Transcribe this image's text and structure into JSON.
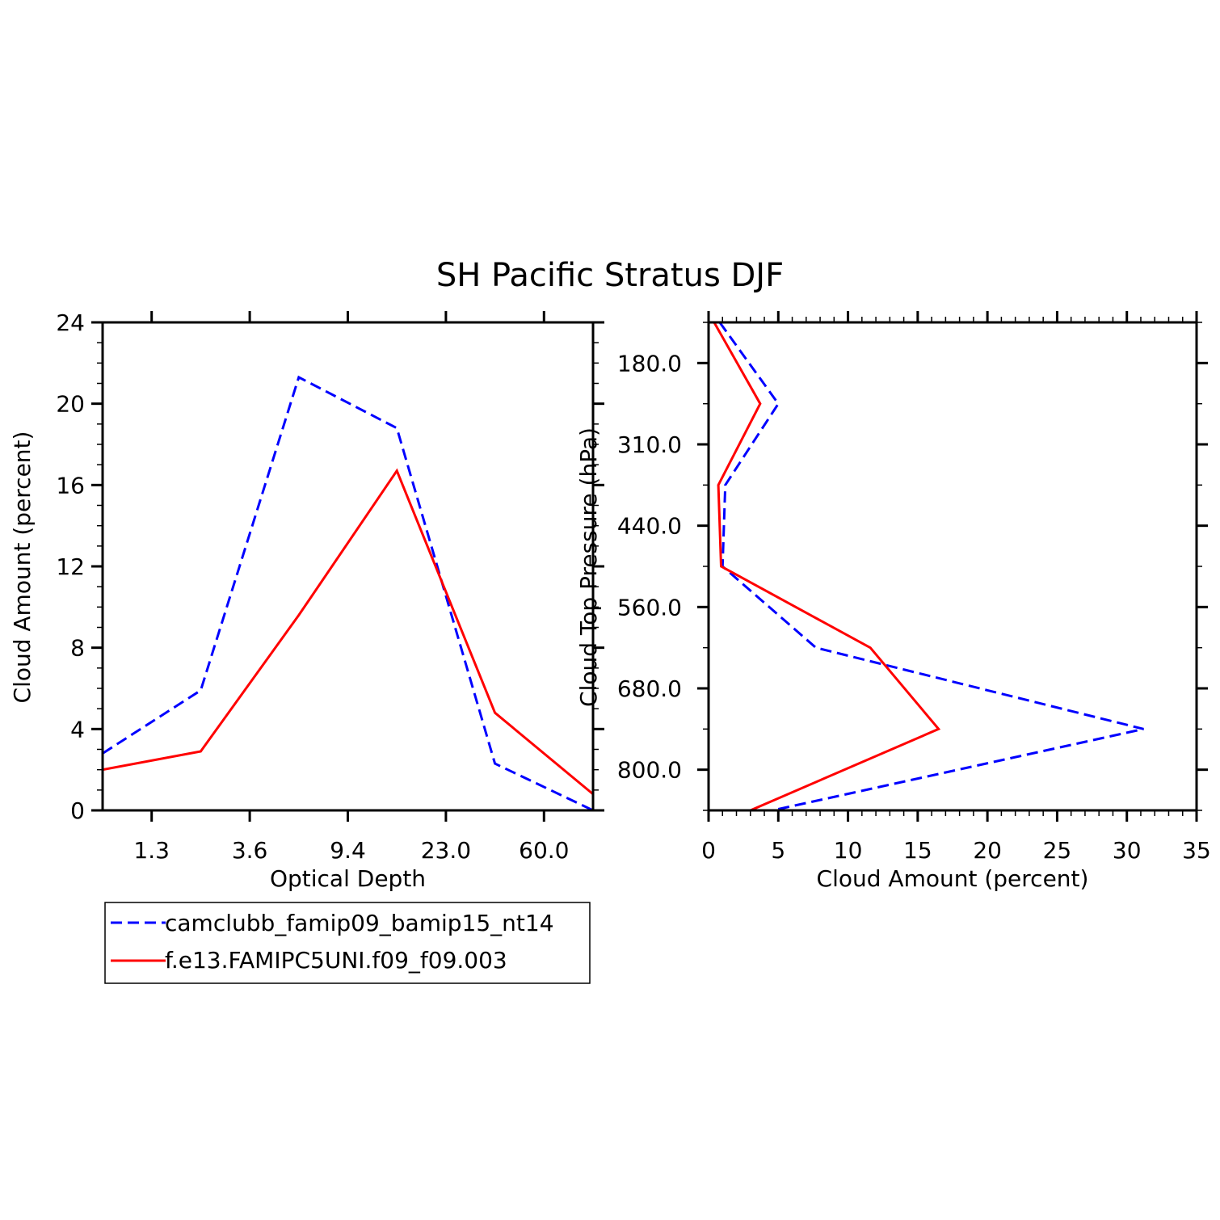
{
  "title": "SH Pacific Stratus DJF",
  "chart_data": [
    {
      "type": "line",
      "xlabel": "Optical Depth",
      "ylabel": "Cloud Amount (percent)",
      "categories": [
        "0.3",
        "1.3",
        "2.3",
        "3.6",
        "6.0",
        "9.4",
        "15.0",
        "23.0",
        "41.0",
        "60.0",
        "80.0"
      ],
      "x_tick_labels": [
        "1.3",
        "3.6",
        "9.4",
        "23.0",
        "60.0"
      ],
      "ylim": [
        0,
        24
      ],
      "y_ticks": [
        0,
        4,
        8,
        12,
        16,
        20,
        24
      ],
      "series": [
        {
          "name": "camclubb_famip09_bamip15_nt14",
          "color": "#0000ff",
          "dash": "dashed",
          "x": [
            "0.3",
            "2.3",
            "6.0",
            "15.0",
            "41.0",
            "80.0"
          ],
          "values": [
            2.8,
            5.9,
            21.3,
            18.8,
            2.3,
            0.0
          ]
        },
        {
          "name": "f.e13.FAMIPC5UNI.f09_f09.003",
          "color": "#ff0000",
          "dash": "solid",
          "x": [
            "0.3",
            "2.3",
            "6.0",
            "15.0",
            "41.0",
            "80.0"
          ],
          "values": [
            2.0,
            2.9,
            9.6,
            16.7,
            4.8,
            0.8
          ]
        }
      ]
    },
    {
      "type": "line",
      "xlabel": "Cloud Amount (percent)",
      "ylabel": "Cloud Top Pressure (hPa)",
      "xlim": [
        0,
        35
      ],
      "x_ticks": [
        0,
        5,
        10,
        15,
        20,
        25,
        30,
        35
      ],
      "pressure_levels": [
        "50.0",
        "180.0",
        "245.0",
        "310.0",
        "375.0",
        "440.0",
        "500.0",
        "560.0",
        "620.0",
        "680.0",
        "740.0",
        "800.0",
        "1000.0"
      ],
      "y_tick_labels": [
        "180.0",
        "310.0",
        "440.0",
        "560.0",
        "680.0",
        "800.0"
      ],
      "series": [
        {
          "name": "camclubb_famip09_bamip15_nt14",
          "color": "#0000ff",
          "dash": "dashed",
          "y": [
            "50.0",
            "245.0",
            "375.0",
            "500.0",
            "620.0",
            "740.0",
            "1000.0"
          ],
          "values": [
            0.8,
            5.0,
            1.2,
            1.0,
            7.7,
            31.2,
            4.6
          ]
        },
        {
          "name": "f.e13.FAMIPC5UNI.f09_f09.003",
          "color": "#ff0000",
          "dash": "solid",
          "y": [
            "50.0",
            "245.0",
            "375.0",
            "500.0",
            "620.0",
            "740.0",
            "1000.0"
          ],
          "values": [
            0.4,
            3.7,
            0.7,
            0.9,
            11.6,
            16.5,
            3.0
          ]
        }
      ]
    }
  ],
  "legend": {
    "items": [
      {
        "label": "camclubb_famip09_bamip15_nt14",
        "color": "#0000ff",
        "dash": "dashed"
      },
      {
        "label": "f.e13.FAMIPC5UNI.f09_f09.003",
        "color": "#ff0000",
        "dash": "solid"
      }
    ]
  }
}
